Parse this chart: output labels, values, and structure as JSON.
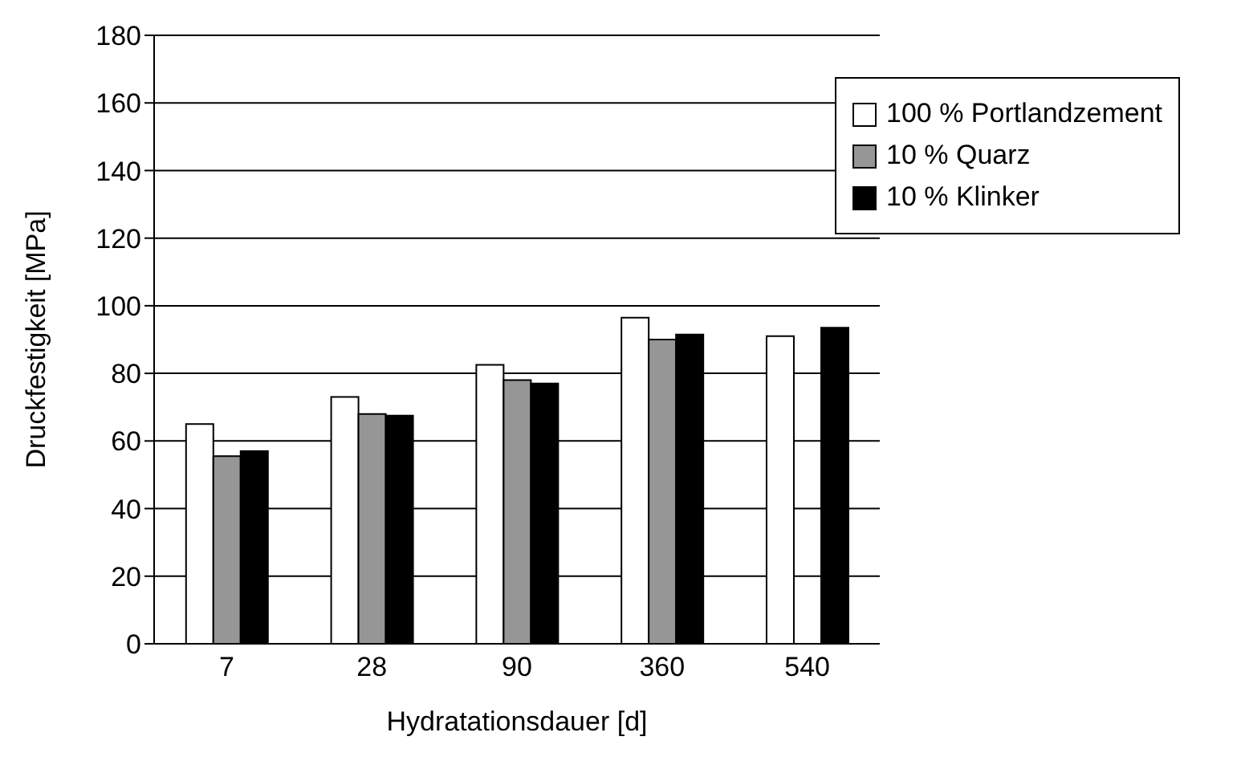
{
  "chart_data": {
    "type": "bar",
    "xlabel": "Hydratationsdauer [d]",
    "ylabel": "Druckfestigkeit [MPa]",
    "categories": [
      "7",
      "28",
      "90",
      "360",
      "540"
    ],
    "series": [
      {
        "name": "100 % Portlandzement",
        "color": "#ffffff",
        "values": [
          65,
          73,
          82.5,
          96.5,
          91
        ]
      },
      {
        "name": "10 % Quarz",
        "color": "#969696",
        "values": [
          55.5,
          68,
          78,
          90,
          null
        ]
      },
      {
        "name": "10 % Klinker",
        "color": "#000000",
        "values": [
          57,
          67.5,
          77,
          91.5,
          93.5
        ]
      }
    ],
    "ylim": [
      0,
      180
    ],
    "yticks": [
      0,
      20,
      40,
      60,
      80,
      100,
      120,
      140,
      160,
      180
    ],
    "grid": "y",
    "legend": "top right"
  }
}
